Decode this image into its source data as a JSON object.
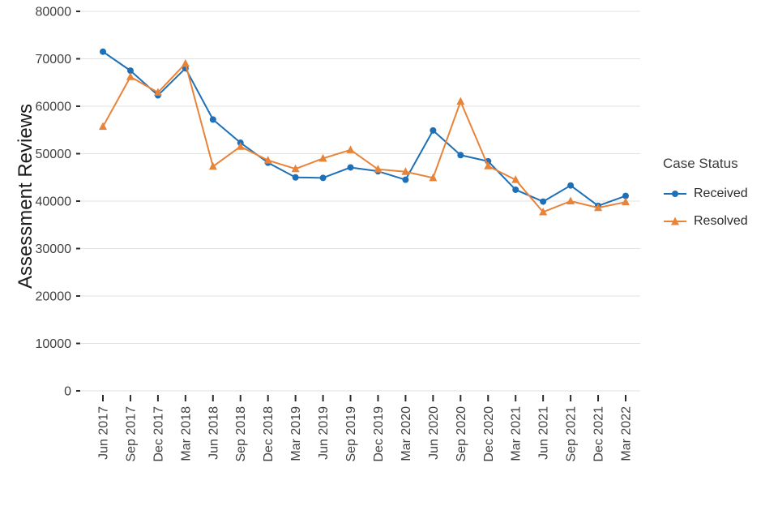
{
  "chart_data": {
    "type": "line",
    "title": "",
    "xlabel": "",
    "ylabel": "Assessment Reviews",
    "legend_title": "Case Status",
    "legend_position": "right",
    "grid": true,
    "ylim": [
      0,
      80000
    ],
    "yticks": [
      0,
      10000,
      20000,
      30000,
      40000,
      50000,
      60000,
      70000,
      80000
    ],
    "categories": [
      "Jun 2017",
      "Sep 2017",
      "Dec 2017",
      "Mar 2018",
      "Jun 2018",
      "Sep 2018",
      "Dec 2018",
      "Mar 2019",
      "Jun 2019",
      "Sep 2019",
      "Dec 2019",
      "Mar 2020",
      "Jun 2020",
      "Sep 2020",
      "Dec 2020",
      "Mar 2021",
      "Jun 2021",
      "Sep 2021",
      "Dec 2021",
      "Mar 2022"
    ],
    "series": [
      {
        "name": "Received",
        "marker": "circle",
        "color": "#1d70b8",
        "values": [
          71500,
          67500,
          62300,
          68000,
          57200,
          52300,
          48100,
          45000,
          44900,
          47100,
          46300,
          44500,
          54900,
          49700,
          48400,
          42400,
          39900,
          43300,
          39000,
          41100
        ]
      },
      {
        "name": "Resolved",
        "marker": "triangle",
        "color": "#e8833a",
        "values": [
          55700,
          66200,
          62900,
          69000,
          47300,
          51500,
          48600,
          46800,
          49000,
          50800,
          46700,
          46200,
          44900,
          61000,
          47400,
          44500,
          37700,
          40000,
          38600,
          39800
        ]
      }
    ],
    "colors": {
      "background": "#ffffff",
      "grid": "#e2e2e2",
      "tick_text": "#414042",
      "tick_mark": "#2b2b2b",
      "axis_title": "#1a1a1a"
    }
  }
}
